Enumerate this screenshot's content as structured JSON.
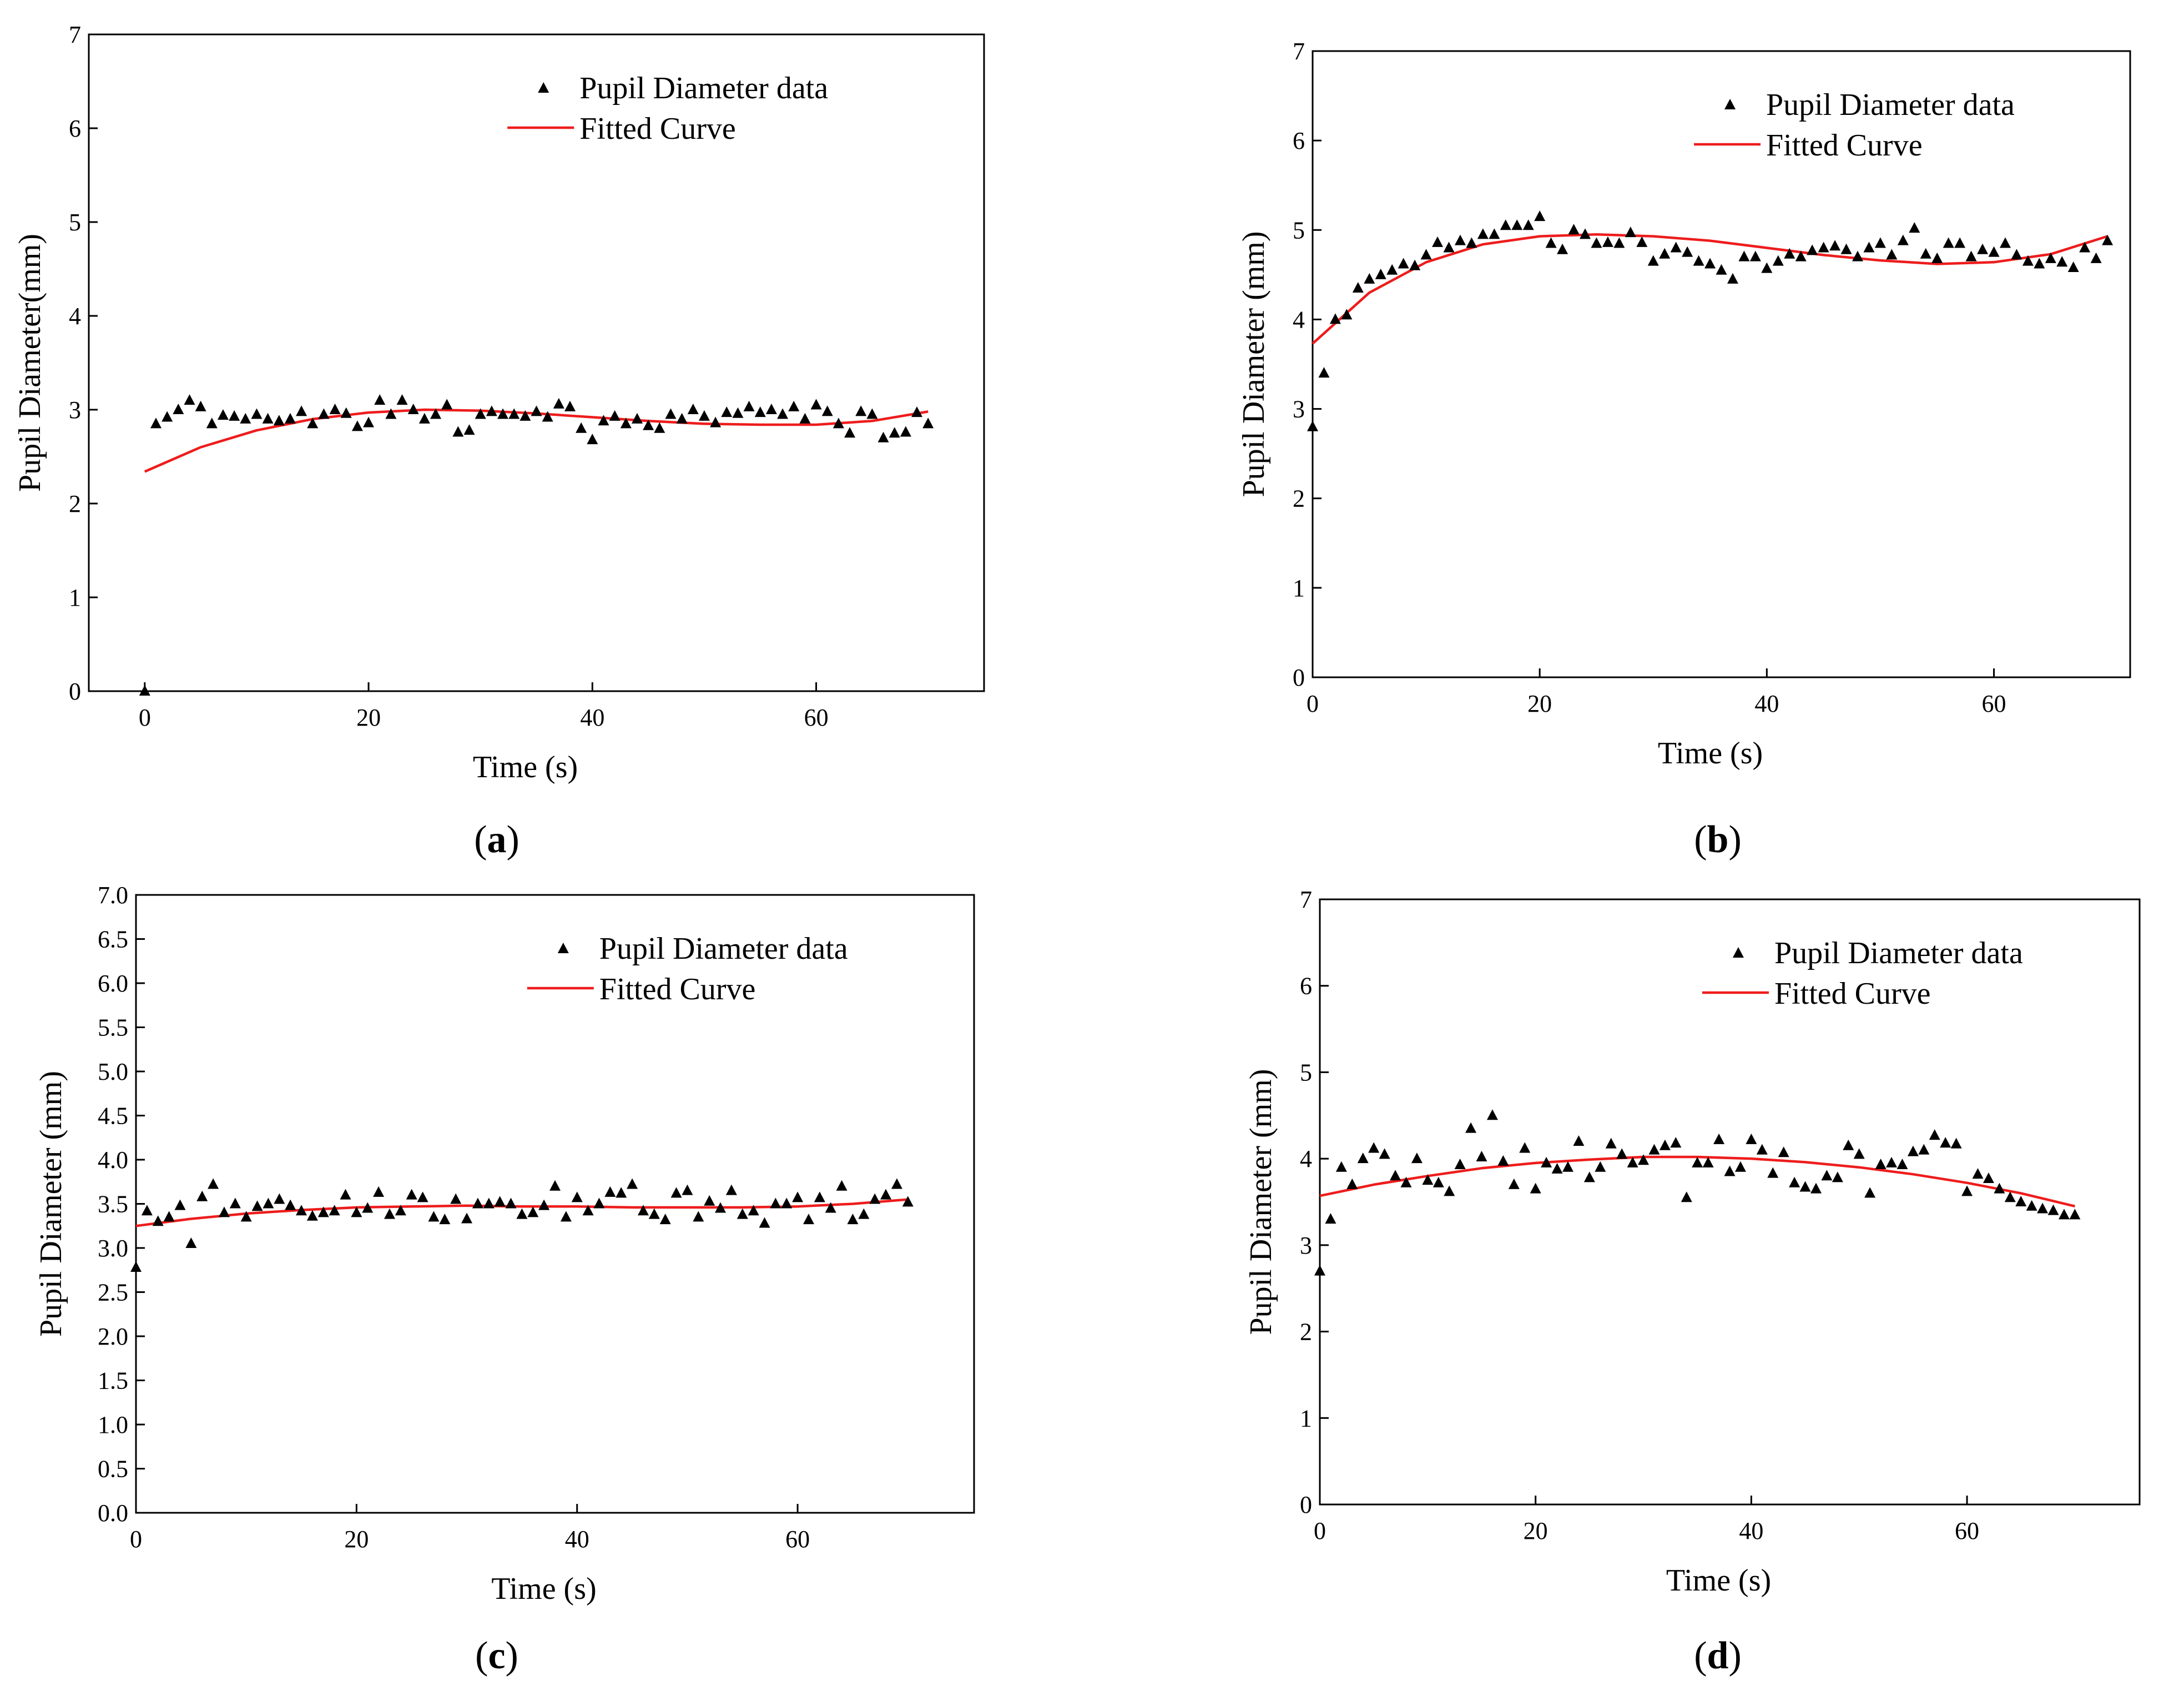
{
  "colors": {
    "marker": "#000000",
    "fit": "#ee1c1c",
    "axis": "#000000",
    "background": "#ffffff"
  },
  "chart_data": [
    {
      "panel": "a",
      "type": "scatter",
      "caption": {
        "open": "(",
        "letter": "a",
        "close": ")"
      },
      "xlabel": "Time (s)",
      "ylabel": "Pupil Diameter(mm)",
      "xlim": [
        -5,
        75
      ],
      "ylim": [
        0,
        7
      ],
      "xticks": [
        0,
        20,
        40,
        60
      ],
      "yticks": [
        0,
        1,
        2,
        3,
        4,
        5,
        6,
        7
      ],
      "ytick_labels": [
        "0",
        "1",
        "2",
        "3",
        "4",
        "5",
        "6",
        "7"
      ],
      "legend": {
        "position": "top-right",
        "data_label": "Pupil Diameter data",
        "fit_label": "Fitted Curve"
      },
      "series": [
        {
          "name": "Pupil Diameter data",
          "kind": "markers",
          "x": [
            0,
            1,
            2,
            3,
            4,
            5,
            6,
            7,
            8,
            9,
            10,
            11,
            12,
            13,
            14,
            15,
            16,
            17,
            18,
            19,
            20,
            21,
            22,
            23,
            24,
            25,
            26,
            27,
            28,
            29,
            30,
            31,
            32,
            33,
            34,
            35,
            36,
            37,
            38,
            39,
            40,
            41,
            42,
            43,
            44,
            45,
            46,
            47,
            48,
            49,
            50,
            51,
            52,
            53,
            54,
            55,
            56,
            57,
            58,
            59,
            60,
            61,
            62,
            63,
            64,
            65,
            66,
            67,
            68,
            69,
            70
          ],
          "y": [
            0.0,
            2.85,
            2.92,
            3.0,
            3.1,
            3.03,
            2.85,
            2.94,
            2.93,
            2.9,
            2.95,
            2.9,
            2.88,
            2.9,
            2.98,
            2.85,
            2.95,
            3.0,
            2.96,
            2.82,
            2.86,
            3.1,
            2.95,
            3.1,
            3.0,
            2.9,
            2.95,
            3.05,
            2.76,
            2.78,
            2.95,
            2.98,
            2.95,
            2.95,
            2.93,
            2.98,
            2.92,
            3.06,
            3.03,
            2.8,
            2.68,
            2.88,
            2.93,
            2.85,
            2.9,
            2.83,
            2.8,
            2.95,
            2.9,
            3.0,
            2.93,
            2.86,
            2.97,
            2.96,
            3.03,
            2.97,
            3.0,
            2.95,
            3.03,
            2.9,
            3.05,
            2.98,
            2.85,
            2.75,
            2.98,
            2.95,
            2.7,
            2.75,
            2.76,
            2.97,
            2.85
          ]
        },
        {
          "name": "Fitted Curve",
          "kind": "line",
          "x": [
            0,
            5,
            10,
            15,
            20,
            25,
            30,
            35,
            40,
            45,
            50,
            55,
            60,
            65,
            70
          ],
          "y": [
            2.34,
            2.6,
            2.78,
            2.9,
            2.97,
            3.0,
            2.99,
            2.96,
            2.92,
            2.88,
            2.85,
            2.84,
            2.84,
            2.88,
            2.98
          ]
        }
      ]
    },
    {
      "panel": "b",
      "type": "scatter",
      "caption": {
        "open": "(",
        "letter": "b",
        "close": ")"
      },
      "xlabel": "Time (s)",
      "ylabel": "Pupil Diameter (mm)",
      "xlim": [
        0,
        72
      ],
      "ylim": [
        0,
        7
      ],
      "xticks": [
        0,
        20,
        40,
        60
      ],
      "yticks": [
        0,
        1,
        2,
        3,
        4,
        5,
        6,
        7
      ],
      "ytick_labels": [
        "0",
        "1",
        "2",
        "3",
        "4",
        "5",
        "6",
        "7"
      ],
      "legend": {
        "position": "top-right",
        "data_label": "Pupil Diameter data",
        "fit_label": "Fitted Curve"
      },
      "series": [
        {
          "name": "Pupil Diameter data",
          "kind": "markers",
          "x": [
            0,
            1,
            2,
            3,
            4,
            5,
            6,
            7,
            8,
            9,
            10,
            11,
            12,
            13,
            14,
            15,
            16,
            17,
            18,
            19,
            20,
            21,
            22,
            23,
            24,
            25,
            26,
            27,
            28,
            29,
            30,
            31,
            32,
            33,
            34,
            35,
            36,
            37,
            38,
            39,
            40,
            41,
            42,
            43,
            44,
            45,
            46,
            47,
            48,
            49,
            50,
            51,
            52,
            53,
            54,
            55,
            56,
            57,
            58,
            59,
            60,
            61,
            62,
            63,
            64,
            65,
            66,
            67,
            68,
            69,
            70
          ],
          "y": [
            2.8,
            3.4,
            4.0,
            4.05,
            4.35,
            4.45,
            4.5,
            4.55,
            4.62,
            4.6,
            4.72,
            4.86,
            4.8,
            4.88,
            4.85,
            4.95,
            4.95,
            5.05,
            5.05,
            5.05,
            5.15,
            4.85,
            4.78,
            5.0,
            4.95,
            4.85,
            4.86,
            4.85,
            4.97,
            4.86,
            4.65,
            4.73,
            4.8,
            4.75,
            4.65,
            4.62,
            4.55,
            4.45,
            4.7,
            4.7,
            4.57,
            4.65,
            4.73,
            4.7,
            4.77,
            4.8,
            4.82,
            4.78,
            4.7,
            4.8,
            4.85,
            4.72,
            4.88,
            5.02,
            4.73,
            4.68,
            4.85,
            4.85,
            4.7,
            4.78,
            4.75,
            4.85,
            4.72,
            4.65,
            4.62,
            4.68,
            4.64,
            4.58,
            4.8,
            4.68,
            4.88
          ]
        },
        {
          "name": "Fitted Curve",
          "kind": "line",
          "x": [
            0,
            5,
            10,
            15,
            20,
            25,
            30,
            35,
            40,
            45,
            50,
            55,
            60,
            65,
            70
          ],
          "y": [
            3.73,
            4.3,
            4.64,
            4.84,
            4.93,
            4.95,
            4.93,
            4.88,
            4.8,
            4.72,
            4.66,
            4.62,
            4.64,
            4.73,
            4.93
          ]
        }
      ]
    },
    {
      "panel": "c",
      "type": "scatter",
      "caption": {
        "open": "(",
        "letter": "c",
        "close": ")"
      },
      "xlabel": "Time (s)",
      "ylabel": "Pupil Diameter (mm)",
      "xlim": [
        0,
        76
      ],
      "ylim": [
        0,
        7
      ],
      "xticks": [
        0,
        20,
        40,
        60
      ],
      "yticks": [
        0,
        0.5,
        1,
        1.5,
        2,
        2.5,
        3,
        3.5,
        4,
        4.5,
        5,
        5.5,
        6,
        6.5,
        7
      ],
      "ytick_labels": [
        "0.0",
        "0.5",
        "1.0",
        "1.5",
        "2.0",
        "2.5",
        "3.0",
        "3.5",
        "4.0",
        "4.5",
        "5.0",
        "5.5",
        "6.0",
        "6.5",
        "7.0"
      ],
      "legend": {
        "position": "top-right",
        "data_label": "Pupil Diameter data",
        "fit_label": "Fitted Curve"
      },
      "series": [
        {
          "name": "Pupil Diameter data",
          "kind": "markers",
          "x": [
            0,
            1,
            2,
            3,
            4,
            5,
            6,
            7,
            8,
            9,
            10,
            11,
            12,
            13,
            14,
            15,
            16,
            17,
            18,
            19,
            20,
            21,
            22,
            23,
            24,
            25,
            26,
            27,
            28,
            29,
            30,
            31,
            32,
            33,
            34,
            35,
            36,
            37,
            38,
            39,
            40,
            41,
            42,
            43,
            44,
            45,
            46,
            47,
            48,
            49,
            50,
            51,
            52,
            53,
            54,
            55,
            56,
            57,
            58,
            59,
            60,
            61,
            62,
            63,
            64,
            65,
            66,
            67,
            68,
            69,
            70
          ],
          "y": [
            2.78,
            3.42,
            3.3,
            3.35,
            3.48,
            3.05,
            3.58,
            3.72,
            3.4,
            3.5,
            3.35,
            3.47,
            3.5,
            3.55,
            3.48,
            3.42,
            3.36,
            3.4,
            3.42,
            3.6,
            3.4,
            3.45,
            3.63,
            3.38,
            3.42,
            3.6,
            3.57,
            3.35,
            3.32,
            3.55,
            3.33,
            3.5,
            3.5,
            3.52,
            3.5,
            3.38,
            3.4,
            3.48,
            3.7,
            3.35,
            3.57,
            3.42,
            3.5,
            3.63,
            3.62,
            3.72,
            3.42,
            3.38,
            3.32,
            3.62,
            3.65,
            3.35,
            3.53,
            3.45,
            3.65,
            3.38,
            3.42,
            3.28,
            3.5,
            3.5,
            3.57,
            3.32,
            3.57,
            3.45,
            3.7,
            3.32,
            3.38,
            3.55,
            3.6,
            3.72,
            3.52
          ]
        },
        {
          "name": "Fitted Curve",
          "kind": "line",
          "x": [
            0,
            5,
            10,
            15,
            20,
            25,
            30,
            35,
            40,
            45,
            50,
            55,
            60,
            65,
            70
          ],
          "y": [
            3.25,
            3.33,
            3.39,
            3.43,
            3.46,
            3.47,
            3.48,
            3.47,
            3.47,
            3.46,
            3.46,
            3.46,
            3.47,
            3.5,
            3.55
          ]
        }
      ]
    },
    {
      "panel": "d",
      "type": "scatter",
      "caption": {
        "open": "(",
        "letter": "d",
        "close": ")"
      },
      "xlabel": "Time (s)",
      "ylabel": "Pupil Diameter (mm)",
      "xlim": [
        0,
        76
      ],
      "ylim": [
        0,
        7
      ],
      "xticks": [
        0,
        20,
        40,
        60
      ],
      "yticks": [
        0,
        1,
        2,
        3,
        4,
        5,
        6,
        7
      ],
      "ytick_labels": [
        "0",
        "1",
        "2",
        "3",
        "4",
        "5",
        "6",
        "7"
      ],
      "legend": {
        "position": "top-right",
        "data_label": "Pupil Diameter data",
        "fit_label": "Fitted Curve"
      },
      "series": [
        {
          "name": "Pupil Diameter data",
          "kind": "markers",
          "x": [
            0,
            1,
            2,
            3,
            4,
            5,
            6,
            7,
            8,
            9,
            10,
            11,
            12,
            13,
            14,
            15,
            16,
            17,
            18,
            19,
            20,
            21,
            22,
            23,
            24,
            25,
            26,
            27,
            28,
            29,
            30,
            31,
            32,
            33,
            34,
            35,
            36,
            37,
            38,
            39,
            40,
            41,
            42,
            43,
            44,
            45,
            46,
            47,
            48,
            49,
            50,
            51,
            52,
            53,
            54,
            55,
            56,
            57,
            58,
            59,
            60,
            61,
            62,
            63,
            64,
            65,
            66,
            67,
            68,
            69,
            70
          ],
          "y": [
            2.7,
            3.3,
            3.9,
            3.7,
            4.0,
            4.12,
            4.05,
            3.8,
            3.72,
            4.0,
            3.75,
            3.72,
            3.62,
            3.93,
            4.35,
            4.02,
            4.5,
            3.97,
            3.7,
            4.12,
            3.65,
            3.95,
            3.88,
            3.9,
            4.2,
            3.78,
            3.9,
            4.17,
            4.05,
            3.95,
            3.98,
            4.1,
            4.15,
            4.18,
            3.55,
            3.95,
            3.95,
            4.22,
            3.85,
            3.9,
            4.22,
            4.1,
            3.83,
            4.07,
            3.72,
            3.67,
            3.65,
            3.8,
            3.78,
            4.15,
            4.05,
            3.6,
            3.93,
            3.95,
            3.93,
            4.08,
            4.1,
            4.27,
            4.18,
            4.17,
            3.62,
            3.82,
            3.77,
            3.65,
            3.55,
            3.5,
            3.45,
            3.42,
            3.4,
            3.35,
            3.35
          ]
        },
        {
          "name": "Fitted Curve",
          "kind": "line",
          "x": [
            0,
            5,
            10,
            15,
            20,
            25,
            30,
            35,
            40,
            45,
            50,
            55,
            60,
            65,
            70
          ],
          "y": [
            3.57,
            3.7,
            3.8,
            3.89,
            3.95,
            3.99,
            4.02,
            4.02,
            4.0,
            3.96,
            3.9,
            3.82,
            3.72,
            3.6,
            3.45
          ]
        }
      ]
    }
  ]
}
